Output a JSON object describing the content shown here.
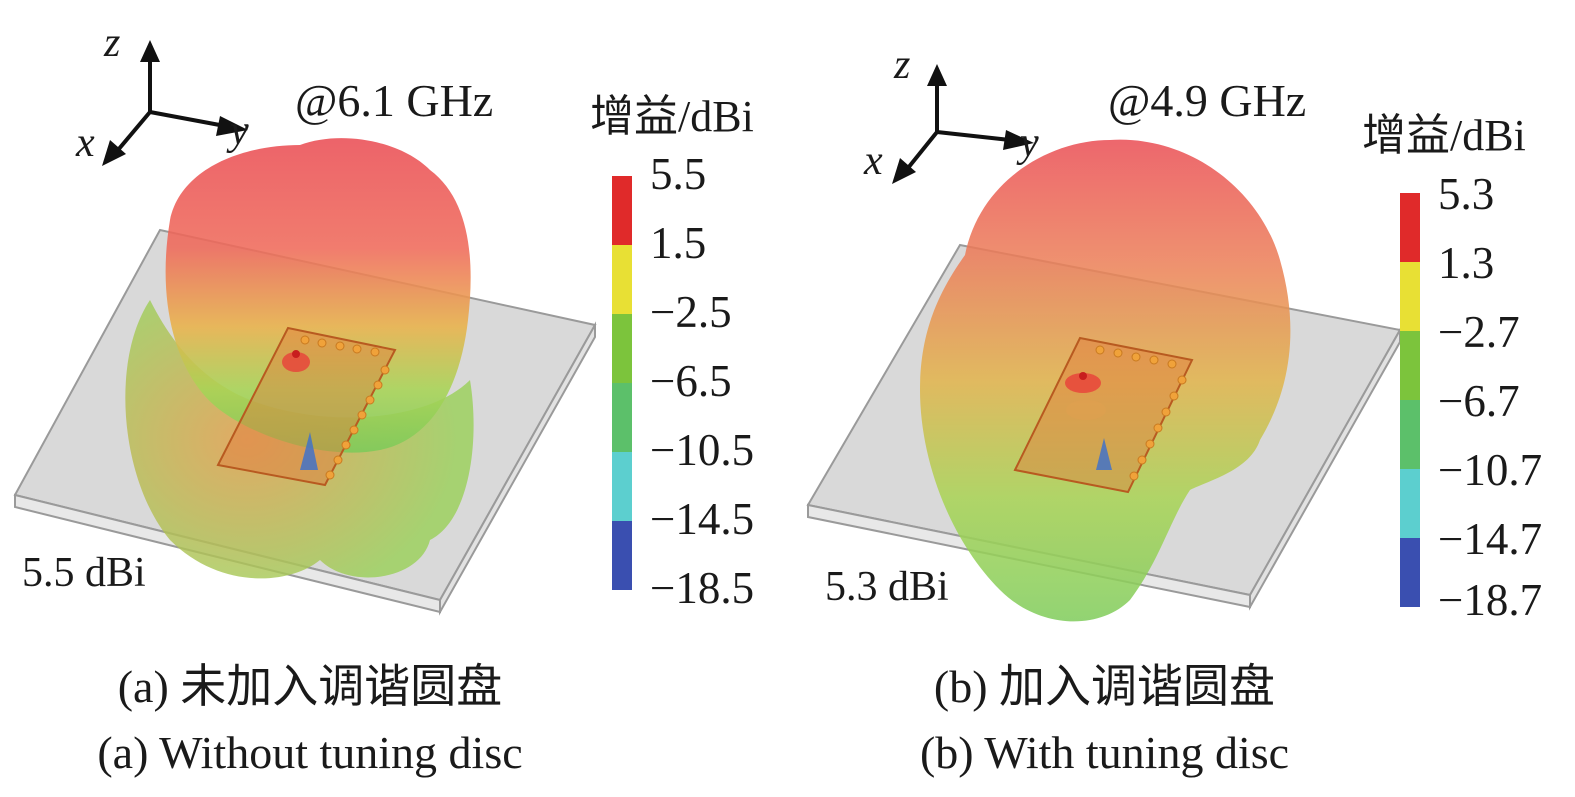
{
  "panels": [
    {
      "frequency": "@6.1 GHz",
      "colorbar": {
        "title": "增益/dBi",
        "ticks": [
          "5.5",
          "1.5",
          "−2.5",
          "−6.5",
          "−10.5",
          "−14.5",
          "−18.5"
        ]
      },
      "peak_gain": "5.5 dBi",
      "axes": {
        "z": "z",
        "x": "x",
        "y": "y"
      },
      "caption_cn": "(a) 未加入调谐圆盘",
      "caption_en": "(a) Without tuning disc"
    },
    {
      "frequency": "@4.9 GHz",
      "colorbar": {
        "title": "增益/dBi",
        "ticks": [
          "5.3",
          "1.3",
          "−2.7",
          "−6.7",
          "−10.7",
          "−14.7",
          "−18.7"
        ]
      },
      "peak_gain": "5.3 dBi",
      "axes": {
        "z": "z",
        "x": "x",
        "y": "y"
      },
      "caption_cn": "(b) 加入调谐圆盘",
      "caption_en": "(b) With tuning disc"
    }
  ],
  "colors": {
    "colorbar_bands": [
      "#e02a2a",
      "#e8e034",
      "#7cc43c",
      "#5cc06a",
      "#5ccfcf",
      "#3a4fb0"
    ],
    "pattern_top": "#ea4e55",
    "pattern_mid": "#e9b24a",
    "pattern_low": "#88d05a",
    "ground_plane": "#cfcfcf",
    "feed_pins": "#f0a23a"
  }
}
